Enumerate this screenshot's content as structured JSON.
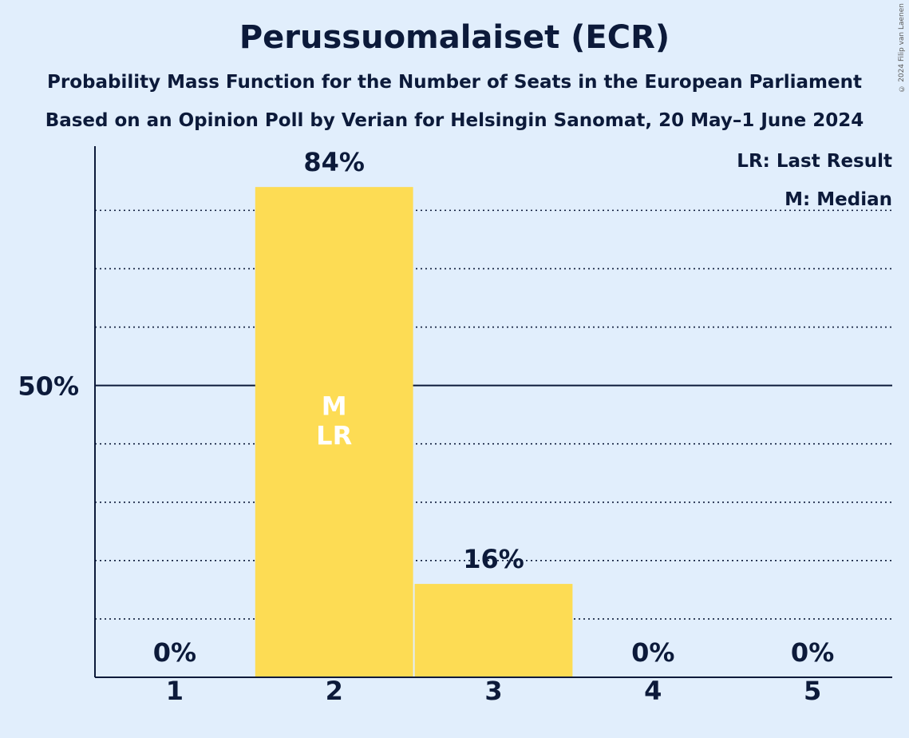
{
  "title": "Perussuomalaiset (ECR)",
  "subtitle1": "Probability Mass Function for the Number of Seats in the European Parliament",
  "subtitle2": "Based on an Opinion Poll by Verian for Helsingin Sanomat, 20 May–1 June 2024",
  "copyright": "© 2024 Filip van Laenen",
  "legend": {
    "last_result": "LR: Last Result",
    "median": "M: Median"
  },
  "colors": {
    "bar": "#fddc54",
    "background": "#e1eefc",
    "text": "#0c1a3a"
  },
  "chart_data": {
    "type": "bar",
    "categories": [
      "1",
      "2",
      "3",
      "4",
      "5"
    ],
    "values": [
      0,
      84,
      16,
      0,
      0
    ],
    "data_labels": [
      "0%",
      "84%",
      "16%",
      "0%",
      "0%"
    ],
    "bar_markers": [
      "",
      "M\nLR",
      "",
      "",
      ""
    ],
    "ylim": [
      0,
      91
    ],
    "yticks": [
      {
        "value": 50,
        "label": "50%"
      }
    ],
    "minor_gridlines": [
      10,
      20,
      30,
      40,
      60,
      70,
      80
    ],
    "legend_placement": "top-right"
  }
}
